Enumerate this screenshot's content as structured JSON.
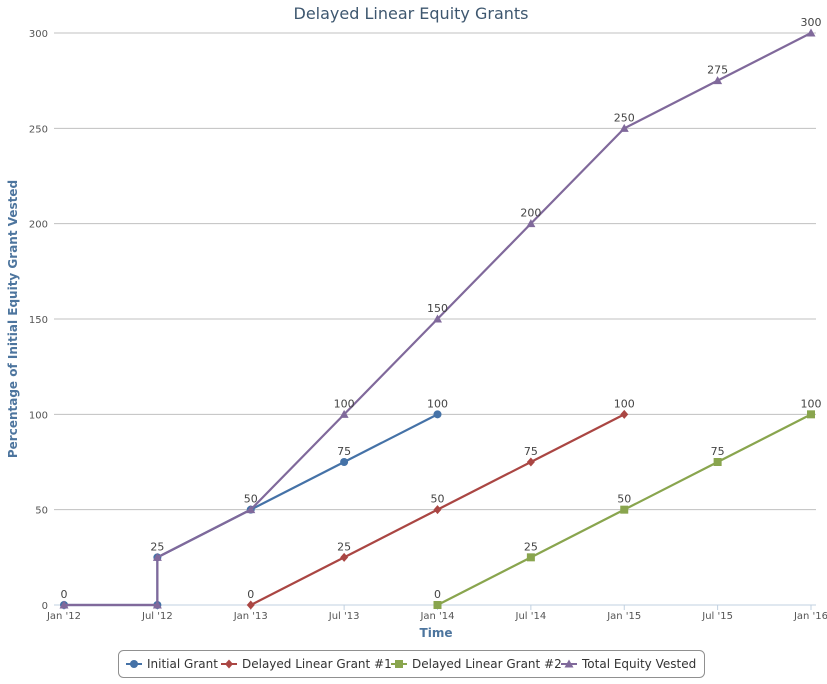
{
  "chart_data": {
    "type": "line",
    "title": "Delayed Linear Equity Grants",
    "xlabel": "Time",
    "ylabel": "Percentage of Initial Equity Grant Vested",
    "x_ticks": [
      "Jan '12",
      "Jul '12",
      "Jan '13",
      "Jul '13",
      "Jan '14",
      "Jul '14",
      "Jan '15",
      "Jul '15",
      "Jan '16"
    ],
    "ylim": [
      0,
      300
    ],
    "y_ticks": [
      0,
      50,
      100,
      150,
      200,
      250,
      300
    ],
    "grid": true,
    "legend_position": "bottom-center",
    "series": [
      {
        "name": "Initial Grant",
        "color": "#4572a7",
        "marker": "circle",
        "points": [
          {
            "x": "Jan '12",
            "y": 0,
            "label": "0"
          },
          {
            "x": "Jul '12",
            "y": 0
          },
          {
            "x": "Jul '12",
            "y": 25
          },
          {
            "x": "Jan '13",
            "y": 50
          },
          {
            "x": "Jul '13",
            "y": 75,
            "label": "75"
          },
          {
            "x": "Jan '14",
            "y": 100,
            "label": "100"
          }
        ]
      },
      {
        "name": "Delayed Linear Grant #1",
        "color": "#aa4643",
        "marker": "diamond",
        "points": [
          {
            "x": "Jan '13",
            "y": 0,
            "label": "0"
          },
          {
            "x": "Jul '13",
            "y": 25,
            "label": "25"
          },
          {
            "x": "Jan '14",
            "y": 50,
            "label": "50"
          },
          {
            "x": "Jul '14",
            "y": 75,
            "label": "75"
          },
          {
            "x": "Jan '15",
            "y": 100,
            "label": "100"
          }
        ]
      },
      {
        "name": "Delayed Linear Grant #2",
        "color": "#89a54e",
        "marker": "square",
        "points": [
          {
            "x": "Jan '14",
            "y": 0,
            "label": "0"
          },
          {
            "x": "Jul '14",
            "y": 25,
            "label": "25"
          },
          {
            "x": "Jan '15",
            "y": 50,
            "label": "50"
          },
          {
            "x": "Jul '15",
            "y": 75,
            "label": "75"
          },
          {
            "x": "Jan '16",
            "y": 100,
            "label": "100"
          }
        ]
      },
      {
        "name": "Total Equity Vested",
        "color": "#80699b",
        "marker": "triangle",
        "points": [
          {
            "x": "Jan '12",
            "y": 0
          },
          {
            "x": "Jul '12",
            "y": 0
          },
          {
            "x": "Jul '12",
            "y": 25,
            "label": "25"
          },
          {
            "x": "Jan '13",
            "y": 50,
            "label": "50"
          },
          {
            "x": "Jul '13",
            "y": 100,
            "label": "100"
          },
          {
            "x": "Jan '14",
            "y": 150,
            "label": "150"
          },
          {
            "x": "Jul '14",
            "y": 200,
            "label": "200"
          },
          {
            "x": "Jan '15",
            "y": 250,
            "label": "250"
          },
          {
            "x": "Jul '15",
            "y": 275,
            "label": "275"
          },
          {
            "x": "Jan '16",
            "y": 300,
            "label": "300"
          }
        ]
      }
    ]
  }
}
